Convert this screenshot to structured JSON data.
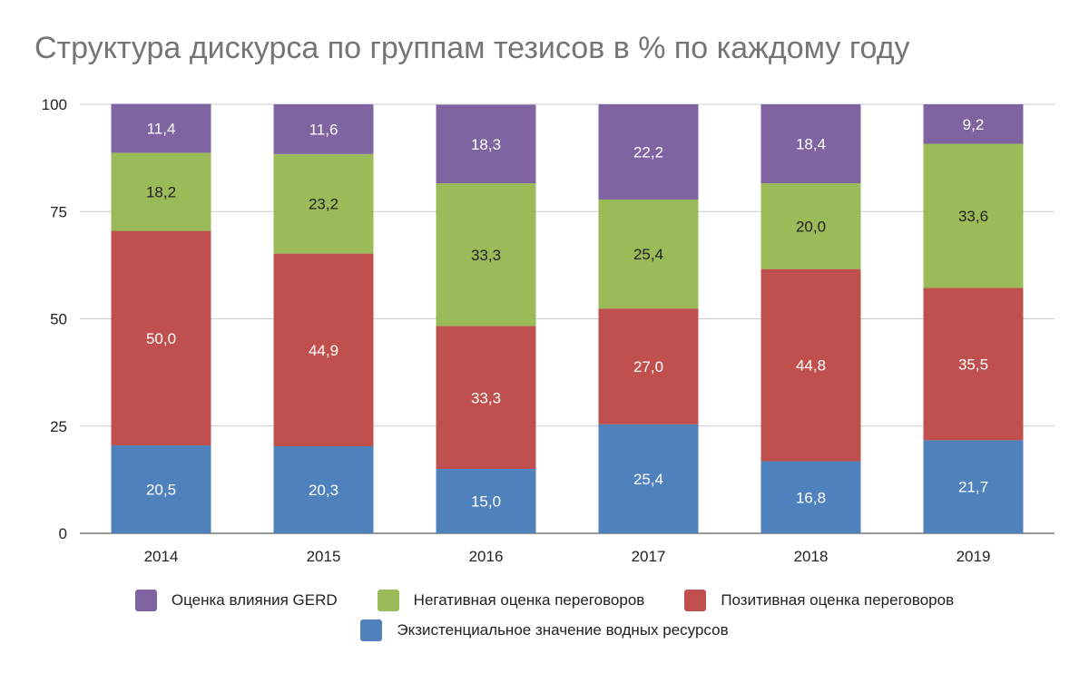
{
  "chart_data": {
    "type": "bar",
    "stacked": true,
    "title": "Структура дискурса по группам тезисов в % по каждому году",
    "xlabel": "",
    "ylabel": "",
    "categories": [
      "2014",
      "2015",
      "2016",
      "2017",
      "2018",
      "2019"
    ],
    "ylim": [
      0,
      100
    ],
    "yticks": [
      0,
      25,
      50,
      75,
      100
    ],
    "grid": true,
    "legend_position": "bottom",
    "series": [
      {
        "name": "Экзистенциальное значение водных ресурсов",
        "color": "#4f81bd",
        "values": [
          20.5,
          20.3,
          15.0,
          25.4,
          16.8,
          21.7
        ],
        "labels": [
          "20,5",
          "20,3",
          "15,0",
          "25,4",
          "16,8",
          "21,7"
        ]
      },
      {
        "name": "Позитивная оценка переговоров",
        "color": "#c0504d",
        "values": [
          50.0,
          44.9,
          33.3,
          27.0,
          44.8,
          35.5
        ],
        "labels": [
          "50,0",
          "44,9",
          "33,3",
          "27,0",
          "44,8",
          "35,5"
        ]
      },
      {
        "name": "Негативная оценка переговоров",
        "color": "#9bbb59",
        "values": [
          18.2,
          23.2,
          33.3,
          25.4,
          20.0,
          33.6
        ],
        "labels": [
          "18,2",
          "23,2",
          "33,3",
          "25,4",
          "20,0",
          "33,6"
        ]
      },
      {
        "name": "Оценка влияния GERD",
        "color": "#8064a2",
        "values": [
          11.4,
          11.6,
          18.3,
          22.2,
          18.4,
          9.2
        ],
        "labels": [
          "11,4",
          "11,6",
          "18,3",
          "22,2",
          "18,4",
          "9,2"
        ]
      }
    ],
    "legend_rows": [
      [
        3,
        2,
        1
      ],
      [
        0
      ]
    ]
  }
}
